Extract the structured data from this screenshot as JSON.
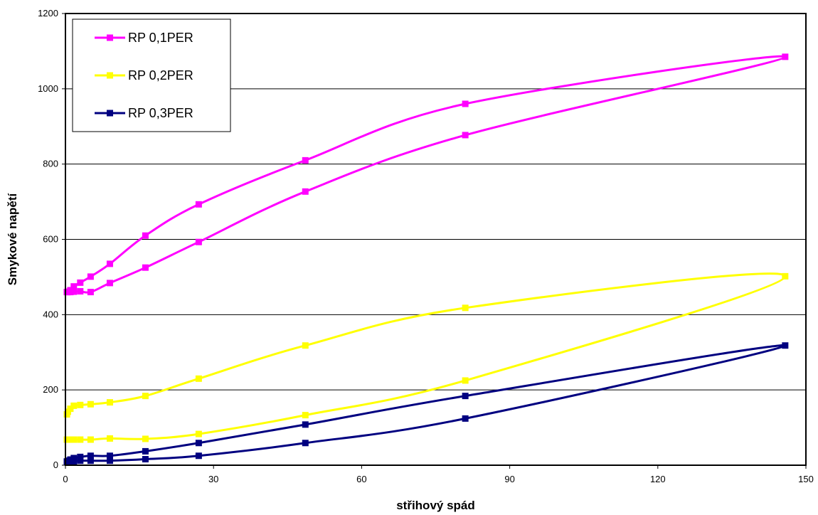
{
  "chart_data": {
    "type": "line",
    "title": "",
    "xlabel": "střihový spád",
    "ylabel": "Smykové napětí",
    "xlim": [
      0,
      150
    ],
    "ylim": [
      0,
      1200
    ],
    "x_ticks": [
      0,
      30,
      60,
      90,
      120,
      150
    ],
    "y_ticks": [
      0,
      200,
      400,
      600,
      800,
      1000,
      1200
    ],
    "grid": "horizontal",
    "legend_position": "top-left",
    "smooth": true,
    "series": [
      {
        "name": "RP 0,1PER",
        "color": "#ff00ff",
        "x": [
          0.3,
          0.5,
          1,
          1.7,
          3,
          5.1,
          9,
          16.2,
          27,
          48.6,
          81,
          145.8,
          81,
          48.6,
          27,
          16.2,
          9,
          5.1,
          3,
          1.7,
          1,
          0.5,
          0.3
        ],
        "y": [
          460,
          460,
          460,
          461,
          462,
          460,
          484,
          525,
          593,
          727,
          877,
          1085,
          960,
          810,
          693,
          610,
          535,
          501,
          485,
          475,
          465,
          461,
          460
        ]
      },
      {
        "name": "RP 0,2PER",
        "color": "#ffff00",
        "x": [
          0.3,
          0.5,
          1,
          1.7,
          3,
          5.1,
          9,
          16.2,
          27,
          48.6,
          81,
          145.8,
          81,
          48.6,
          27,
          16.2,
          9,
          5.1,
          3,
          1.7,
          1,
          0.5,
          0.3
        ],
        "y": [
          68,
          68,
          68,
          68,
          68,
          68,
          71,
          70,
          83,
          133,
          225,
          502,
          418,
          318,
          230,
          184,
          167,
          162,
          160,
          158,
          150,
          142,
          135
        ]
      },
      {
        "name": "RP 0,3PER",
        "color": "#000080",
        "x": [
          0.3,
          0.5,
          1,
          1.7,
          3,
          5.1,
          9,
          16.2,
          27,
          48.6,
          81,
          145.8,
          81,
          48.6,
          27,
          16.2,
          9,
          5.1,
          3,
          1.7,
          1,
          0.5,
          0.3
        ],
        "y": [
          9,
          9,
          9,
          10,
          12,
          12,
          12,
          16,
          25,
          59,
          124,
          318,
          184,
          108,
          59,
          37,
          25,
          25,
          22,
          19,
          15,
          12,
          10
        ]
      }
    ]
  }
}
